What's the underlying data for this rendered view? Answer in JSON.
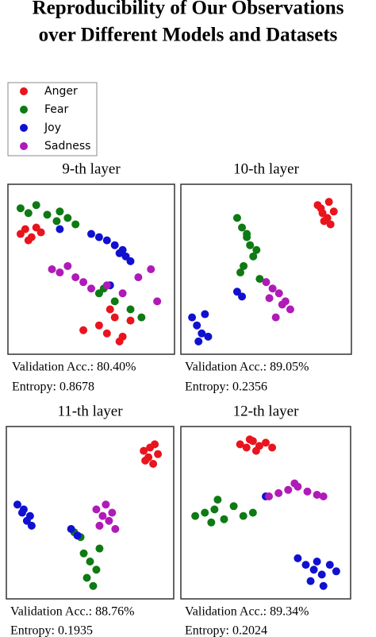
{
  "header": {
    "title": [
      "Reproducibility of Our Observations",
      "over Different Models and Datasets"
    ]
  },
  "chart_data": [
    {
      "type": "scatter",
      "title": "9-th layer",
      "caption": [
        "Validation Acc.: 80.40%",
        "Entropy: 0.8678"
      ],
      "xlim": [
        0,
        100
      ],
      "ylim": [
        0,
        100
      ],
      "series": [
        {
          "name": "Anger",
          "color": "#e8141e",
          "x": [
            5,
            8,
            12,
            15,
            18,
            10,
            55,
            60,
            65,
            70,
            75,
            62,
            68,
            45
          ],
          "y": [
            72,
            75,
            70,
            76,
            73,
            68,
            15,
            10,
            20,
            8,
            18,
            25,
            5,
            12
          ]
        },
        {
          "name": "Fear",
          "color": "#0e7a13",
          "x": [
            5,
            10,
            15,
            22,
            28,
            35,
            40,
            30,
            55,
            65,
            75,
            82,
            58
          ],
          "y": [
            88,
            85,
            90,
            84,
            80,
            82,
            78,
            86,
            35,
            30,
            25,
            20,
            38
          ]
        },
        {
          "name": "Joy",
          "color": "#1010d0",
          "x": [
            50,
            55,
            60,
            65,
            70,
            72,
            75,
            68,
            62,
            30
          ],
          "y": [
            72,
            70,
            68,
            65,
            62,
            58,
            55,
            60,
            40,
            75
          ]
        },
        {
          "name": "Sadness",
          "color": "#b01ab8",
          "x": [
            25,
            30,
            35,
            40,
            45,
            60,
            70,
            80,
            88,
            92,
            50
          ],
          "y": [
            50,
            48,
            52,
            45,
            42,
            40,
            35,
            45,
            50,
            30,
            38
          ]
        }
      ]
    },
    {
      "type": "scatter",
      "title": "10-th layer",
      "caption": [
        "Validation Acc.: 89.05%",
        "Entropy: 0.2356"
      ],
      "xlim": [
        0,
        100
      ],
      "ylim": [
        0,
        100
      ],
      "series": [
        {
          "color": "#e8141e",
          "x": [
            82,
            85,
            88,
            90,
            92,
            86,
            84,
            89
          ],
          "y": [
            90,
            85,
            82,
            78,
            86,
            80,
            88,
            92
          ]
        },
        {
          "color": "#0e7a13",
          "x": [
            32,
            35,
            38,
            40,
            42,
            36,
            34,
            44,
            38,
            46
          ],
          "y": [
            82,
            76,
            70,
            65,
            58,
            52,
            48,
            62,
            72,
            44
          ]
        },
        {
          "color": "#1010d0",
          "x": [
            4,
            7,
            10,
            12,
            14,
            8,
            32,
            35
          ],
          "y": [
            20,
            15,
            10,
            22,
            8,
            5,
            36,
            33
          ]
        },
        {
          "color": "#b01ab8",
          "x": [
            50,
            54,
            58,
            62,
            65,
            56,
            60,
            52
          ],
          "y": [
            42,
            38,
            35,
            30,
            25,
            20,
            28,
            32
          ]
        }
      ]
    },
    {
      "type": "scatter",
      "title": "11-th layer",
      "caption": [
        "Validation Acc.: 88.76%",
        "Entropy: 0.1935"
      ],
      "xlim": [
        0,
        100
      ],
      "ylim": [
        0,
        100
      ],
      "series": [
        {
          "color": "#e8141e",
          "x": [
            84,
            87,
            90,
            93,
            88,
            85,
            91
          ],
          "y": [
            88,
            84,
            80,
            86,
            90,
            82,
            92
          ]
        },
        {
          "color": "#0e7a13",
          "x": [
            46,
            50,
            54,
            48,
            52,
            56,
            40,
            44
          ],
          "y": [
            25,
            20,
            15,
            10,
            5,
            28,
            38,
            35
          ]
        },
        {
          "color": "#1010d0",
          "x": [
            4,
            7,
            10,
            13,
            8,
            12,
            38,
            42
          ],
          "y": [
            55,
            50,
            45,
            42,
            52,
            48,
            40,
            36
          ]
        },
        {
          "color": "#b01ab8",
          "x": [
            54,
            58,
            62,
            66,
            60,
            56,
            64
          ],
          "y": [
            52,
            48,
            45,
            40,
            55,
            42,
            50
          ]
        }
      ]
    },
    {
      "type": "scatter",
      "title": "12-th layer",
      "caption": [
        "Validation Acc.: 89.34%",
        "Entropy: 0.2024"
      ],
      "xlim": [
        0,
        100
      ],
      "ylim": [
        0,
        100
      ],
      "series": [
        {
          "color": "#e8141e",
          "x": [
            34,
            38,
            42,
            46,
            50,
            54,
            44,
            40
          ],
          "y": [
            92,
            90,
            94,
            91,
            93,
            90,
            88,
            95
          ]
        },
        {
          "color": "#0e7a13",
          "x": [
            6,
            12,
            18,
            24,
            30,
            36,
            42,
            20,
            16
          ],
          "y": [
            48,
            50,
            52,
            46,
            54,
            48,
            50,
            58,
            44
          ]
        },
        {
          "color": "#1010d0",
          "x": [
            70,
            75,
            80,
            85,
            90,
            94,
            78,
            82,
            50,
            86
          ],
          "y": [
            22,
            18,
            15,
            12,
            18,
            14,
            8,
            20,
            60,
            5
          ]
        },
        {
          "color": "#b01ab8",
          "x": [
            52,
            58,
            64,
            70,
            76,
            82,
            86,
            68
          ],
          "y": [
            60,
            62,
            64,
            66,
            63,
            61,
            60,
            68
          ]
        }
      ]
    }
  ]
}
